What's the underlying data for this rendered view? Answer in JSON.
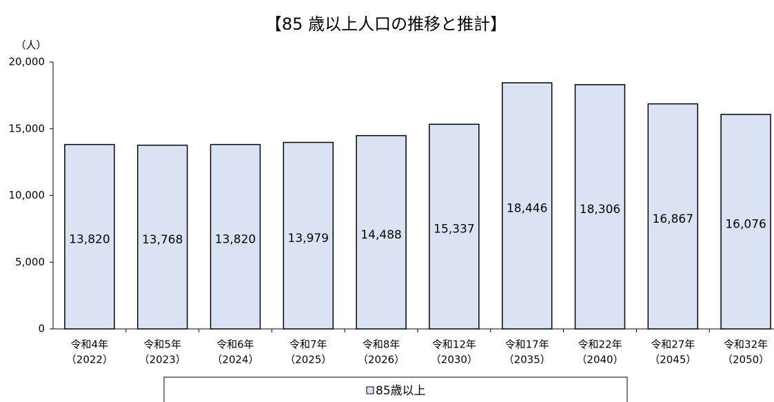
{
  "chart_data": {
    "type": "bar",
    "title": "【85 歳以上人口の推移と推計】",
    "y_label": "（人）",
    "categories": [
      [
        "令和4年",
        "（2022）"
      ],
      [
        "令和5年",
        "（2023）"
      ],
      [
        "令和6年",
        "（2024）"
      ],
      [
        "令和7年",
        "（2025）"
      ],
      [
        "令和8年",
        "（2026）"
      ],
      [
        "令和12年",
        "（2030）"
      ],
      [
        "令和17年",
        "（2035）"
      ],
      [
        "令和22年",
        "（2040）"
      ],
      [
        "令和27年",
        "（2045）"
      ],
      [
        "令和32年",
        "（2050）"
      ]
    ],
    "series": [
      {
        "name": "85歳以上",
        "color": "#dae3f3",
        "values": [
          13820,
          13768,
          13820,
          13979,
          14488,
          15337,
          18446,
          18306,
          16867,
          16076
        ],
        "value_labels": [
          "13,820",
          "13,768",
          "13,820",
          "13,979",
          "14,488",
          "15,337",
          "18,446",
          "18,306",
          "16,867",
          "16,076"
        ]
      }
    ],
    "ylim": [
      0,
      20000
    ],
    "yticks": [
      0,
      {
        "value": 5000,
        "label": "5,000"
      },
      {
        "value": 10000,
        "label": "10,000"
      },
      {
        "value": 15000,
        "label": "15,000"
      },
      {
        "value": 20000,
        "label": "20,000"
      }
    ],
    "legend": "bottom"
  }
}
